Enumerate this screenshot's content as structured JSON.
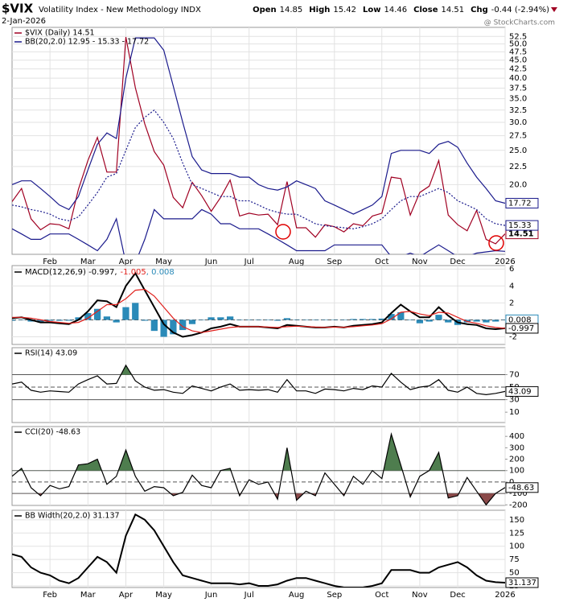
{
  "chart_data": [
    {
      "type": "line",
      "symbol": "$VIX",
      "title": "Volatility Index - New Methodology INDX",
      "date": "2-Jan-2026",
      "quote": [
        {
          "label": "Open",
          "value": 14.85
        },
        {
          "label": "High",
          "value": 15.42
        },
        {
          "label": "Low",
          "value": 14.46
        },
        {
          "label": "Close",
          "value": 14.51
        },
        {
          "label": "Chg",
          "value": "-0.44 (-2.94%)"
        }
      ],
      "credit": "@ StockCharts.com",
      "log": true,
      "xlim": [
        0,
        52
      ],
      "ylim": [
        12.7,
        55.7
      ],
      "xticks": [
        {
          "value": 4,
          "label": "Feb"
        },
        {
          "value": 8,
          "label": "Mar"
        },
        {
          "value": 12,
          "label": "Apr"
        },
        {
          "value": 16,
          "label": "May"
        },
        {
          "value": 21,
          "label": "Jun"
        },
        {
          "value": 25,
          "label": "Jul"
        },
        {
          "value": 30,
          "label": "Aug"
        },
        {
          "value": 34,
          "label": "Sep"
        },
        {
          "value": 39,
          "label": "Oct"
        },
        {
          "value": 43,
          "label": "Nov"
        },
        {
          "value": 47,
          "label": "Dec"
        },
        {
          "value": 52,
          "label": "2026"
        }
      ],
      "yticks": [
        52.5,
        {
          "value": 50,
          "label": "50.0"
        },
        47.5,
        {
          "value": 45,
          "label": "45.0"
        },
        42.5,
        {
          "value": 40,
          "label": "40.0"
        },
        37.5,
        {
          "value": 35,
          "label": "35.0"
        },
        32.5,
        {
          "value": 30,
          "label": "30.0"
        },
        27.5,
        {
          "value": 25,
          "label": "25.0"
        },
        22.5,
        {
          "value": 20,
          "label": "20.0"
        }
      ],
      "grid": true,
      "series": [
        {
          "name": "$VIX (Daily) 14.51",
          "color": "#a00022",
          "tag": true,
          "values": [
            17.9,
            19.5,
            16.0,
            14.9,
            15.5,
            15.4,
            15.0,
            19.4,
            23.4,
            27.2,
            21.7,
            21.7,
            52.3,
            37.6,
            29.7,
            24.8,
            22.7,
            18.4,
            17.2,
            20.3,
            18.6,
            16.8,
            18.4,
            20.6,
            16.3,
            16.6,
            16.4,
            16.5,
            15.4,
            20.4,
            15.1,
            15.1,
            14.2,
            15.4,
            15.2,
            14.7,
            15.5,
            15.3,
            16.3,
            16.6,
            21.0,
            20.8,
            16.4,
            19.0,
            19.8,
            23.4,
            16.4,
            15.4,
            14.8,
            16.9,
            14.0,
            13.6,
            14.51
          ]
        },
        {
          "name": "BB(20,2.0) 12.95 - 15.33 - 17.72",
          "color": "#1a1a8c",
          "tag": true,
          "values": [
            20,
            20.5,
            20.5,
            19.5,
            18.5,
            17.5,
            17,
            18.5,
            22,
            26,
            28,
            27,
            40,
            52,
            52,
            52,
            48,
            38,
            30,
            24,
            22,
            21.5,
            21.5,
            21.5,
            21,
            21,
            20,
            19.5,
            19.3,
            19.7,
            20.5,
            20,
            19.5,
            18,
            17.5,
            17,
            16.5,
            17,
            17.5,
            18.5,
            24.5,
            25,
            25,
            25,
            24.5,
            26,
            26.5,
            25.5,
            23,
            21,
            19.5,
            18,
            17.72
          ]
        },
        {
          "color": "#1a1a8c",
          "dash": true,
          "tag": true,
          "values": [
            17.5,
            17.3,
            17.0,
            16.8,
            16.5,
            16.0,
            15.8,
            16.2,
            17.5,
            19.0,
            21.0,
            21.5,
            25,
            29,
            31,
            32.5,
            30,
            27,
            23,
            20,
            19.5,
            19,
            18.5,
            18.5,
            18,
            18,
            17.5,
            17,
            16.7,
            16.5,
            16.5,
            16,
            15.5,
            15.3,
            15.2,
            15.1,
            15,
            15.2,
            15.5,
            16,
            17,
            18,
            18.5,
            18.5,
            19,
            19.5,
            19,
            18,
            17.5,
            17,
            16,
            15.5,
            15.33
          ]
        },
        {
          "color": "#1a1a8c",
          "values": [
            15,
            14.5,
            14,
            14,
            14.5,
            14.5,
            14.5,
            14,
            13.5,
            13,
            14,
            16,
            12,
            12,
            14,
            17,
            16,
            16,
            16,
            16,
            17,
            16.5,
            15.5,
            15.5,
            15,
            15,
            15,
            14.5,
            14,
            13.5,
            13,
            13,
            13,
            13,
            13.5,
            13.5,
            13.5,
            13.5,
            13.5,
            13.5,
            12.5,
            12.5,
            12.8,
            12.5,
            13,
            13.5,
            13,
            12.5,
            12.5,
            12.8,
            12.9,
            13,
            12.95
          ]
        }
      ]
    },
    {
      "type": "line",
      "xlim": [
        0,
        52
      ],
      "ylim": [
        -2.9,
        6.4
      ],
      "yticks": [
        6,
        4,
        2,
        0,
        -2
      ],
      "grid": true,
      "legend_layout": "inline",
      "reference_lines": [
        {
          "value": 0,
          "dash": true
        }
      ],
      "series": [
        {
          "name": ", 0.008",
          "color": "#2a8ab8",
          "style": "bar",
          "tag": true,
          "values": [
            -0.1,
            0,
            -0.2,
            -0.3,
            -0.1,
            -0.1,
            -0.1,
            0.3,
            0.8,
            1.3,
            0.4,
            -0.3,
            1.5,
            2,
            -0.1,
            -1.3,
            -2,
            -1.7,
            -1.2,
            -0.5,
            0,
            0.3,
            0.3,
            0.4,
            0,
            0,
            0,
            -0.05,
            -0.1,
            0.2,
            0.05,
            -0.02,
            -0.05,
            -0.02,
            0.05,
            -0.03,
            0.1,
            0.1,
            0.1,
            0.15,
            0.7,
            0.9,
            0,
            -0.4,
            -0.2,
            0.6,
            -0.3,
            -0.6,
            -0.3,
            -0.2,
            -0.3,
            -0.2,
            0.008
          ]
        },
        {
          "name": "MACD(12,26,9) -0.997,",
          "color": "#000000",
          "width": 2,
          "tag": true,
          "values": [
            0.2,
            0.3,
            0,
            -0.3,
            -0.3,
            -0.4,
            -0.5,
            0,
            1,
            2.3,
            2.2,
            1.5,
            4,
            5.5,
            3.5,
            1.5,
            -0.5,
            -1.5,
            -2,
            -1.8,
            -1.5,
            -1,
            -0.8,
            -0.5,
            -0.8,
            -0.8,
            -0.8,
            -0.9,
            -1,
            -0.6,
            -0.7,
            -0.8,
            -0.9,
            -0.9,
            -0.8,
            -0.9,
            -0.7,
            -0.6,
            -0.5,
            -0.3,
            0.8,
            1.8,
            1.0,
            0.3,
            0.3,
            1.5,
            0.5,
            -0.3,
            -0.5,
            -0.6,
            -1.0,
            -1.1,
            -0.997
          ]
        },
        {
          "name": "-1.005",
          "color": "#e0201c",
          "values": [
            0.3,
            0.3,
            0.2,
            0,
            -0.2,
            -0.3,
            -0.4,
            -0.3,
            0.2,
            1,
            1.8,
            1.8,
            2.5,
            3.5,
            3.6,
            2.8,
            1.5,
            0.2,
            -0.8,
            -1.3,
            -1.5,
            -1.3,
            -1.1,
            -0.9,
            -0.8,
            -0.8,
            -0.8,
            -0.85,
            -0.9,
            -0.8,
            -0.75,
            -0.78,
            -0.85,
            -0.88,
            -0.85,
            -0.87,
            -0.8,
            -0.7,
            -0.6,
            -0.45,
            0.1,
            0.9,
            1.0,
            0.7,
            0.5,
            0.9,
            0.8,
            0.3,
            -0.2,
            -0.4,
            -0.7,
            -0.9,
            -1.005
          ]
        }
      ]
    },
    {
      "type": "line",
      "xlim": [
        0,
        52
      ],
      "ylim": [
        -6.5,
        113
      ],
      "yticks": [
        70,
        50,
        30,
        10
      ],
      "grid": false,
      "reference_lines": [
        {
          "value": 70,
          "fill": "above",
          "fill_color": "#4e7d4e"
        },
        {
          "value": 50,
          "dash": true
        },
        {
          "value": 30
        }
      ],
      "series": [
        {
          "name": "RSI(14) 43.09",
          "color": "#000000",
          "tag": true,
          "values": [
            55,
            58,
            45,
            42,
            44,
            43,
            42,
            55,
            62,
            68,
            55,
            56,
            85,
            60,
            50,
            45,
            46,
            42,
            40,
            52,
            48,
            44,
            50,
            55,
            45,
            46,
            45,
            46,
            42,
            62,
            44,
            44,
            40,
            47,
            46,
            44,
            48,
            46,
            52,
            50,
            72,
            58,
            46,
            50,
            52,
            62,
            45,
            42,
            50,
            40,
            38,
            40,
            43.09
          ]
        }
      ]
    },
    {
      "type": "line",
      "xlim": [
        0,
        52
      ],
      "ylim": [
        -205,
        486
      ],
      "yticks": [
        400,
        300,
        200,
        100,
        0,
        -100,
        -200
      ],
      "grid": false,
      "reference_lines": [
        {
          "value": 100,
          "fill": "above",
          "fill_color": "#4e7d4e"
        },
        {
          "value": 0,
          "dash": true
        },
        {
          "value": -100,
          "fill": "below",
          "fill_color": "#8b4a4a"
        }
      ],
      "series": [
        {
          "name": "CCI(20) -48.63",
          "color": "#000000",
          "tag": true,
          "values": [
            50,
            120,
            -50,
            -120,
            -30,
            -60,
            -40,
            150,
            160,
            200,
            -20,
            50,
            280,
            50,
            -80,
            -40,
            -50,
            -120,
            -90,
            60,
            -30,
            -50,
            100,
            120,
            -120,
            20,
            -20,
            0,
            -150,
            300,
            -160,
            -80,
            -120,
            80,
            -20,
            -120,
            50,
            -20,
            100,
            30,
            420,
            150,
            -130,
            50,
            100,
            260,
            -140,
            -120,
            40,
            -80,
            -200,
            -100,
            -48.63
          ]
        }
      ]
    },
    {
      "type": "line",
      "xlim": [
        0,
        52
      ],
      "ylim": [
        22,
        168
      ],
      "xticks": [
        {
          "value": 4,
          "label": "Feb"
        },
        {
          "value": 8,
          "label": "Mar"
        },
        {
          "value": 12,
          "label": "Apr"
        },
        {
          "value": 16,
          "label": "May"
        },
        {
          "value": 21,
          "label": "Jun"
        },
        {
          "value": 25,
          "label": "Jul"
        },
        {
          "value": 30,
          "label": "Aug"
        },
        {
          "value": 34,
          "label": "Sep"
        },
        {
          "value": 39,
          "label": "Oct"
        },
        {
          "value": 43,
          "label": "Nov"
        },
        {
          "value": 47,
          "label": "Dec"
        },
        {
          "value": 52,
          "label": "2026"
        }
      ],
      "yticks": [
        150,
        125,
        100,
        75,
        50,
        25
      ],
      "grid": true,
      "series": [
        {
          "name": "BB Width(20,2.0) 31.137",
          "color": "#000000",
          "width": 2,
          "tag": true,
          "values": [
            85,
            80,
            60,
            50,
            45,
            35,
            30,
            40,
            60,
            80,
            70,
            50,
            120,
            160,
            150,
            130,
            100,
            70,
            45,
            40,
            35,
            30,
            30,
            30,
            28,
            30,
            25,
            25,
            28,
            35,
            40,
            40,
            35,
            30,
            25,
            22,
            22,
            22,
            25,
            30,
            55,
            55,
            55,
            50,
            50,
            60,
            65,
            70,
            60,
            45,
            35,
            32,
            31.137
          ]
        }
      ]
    }
  ]
}
